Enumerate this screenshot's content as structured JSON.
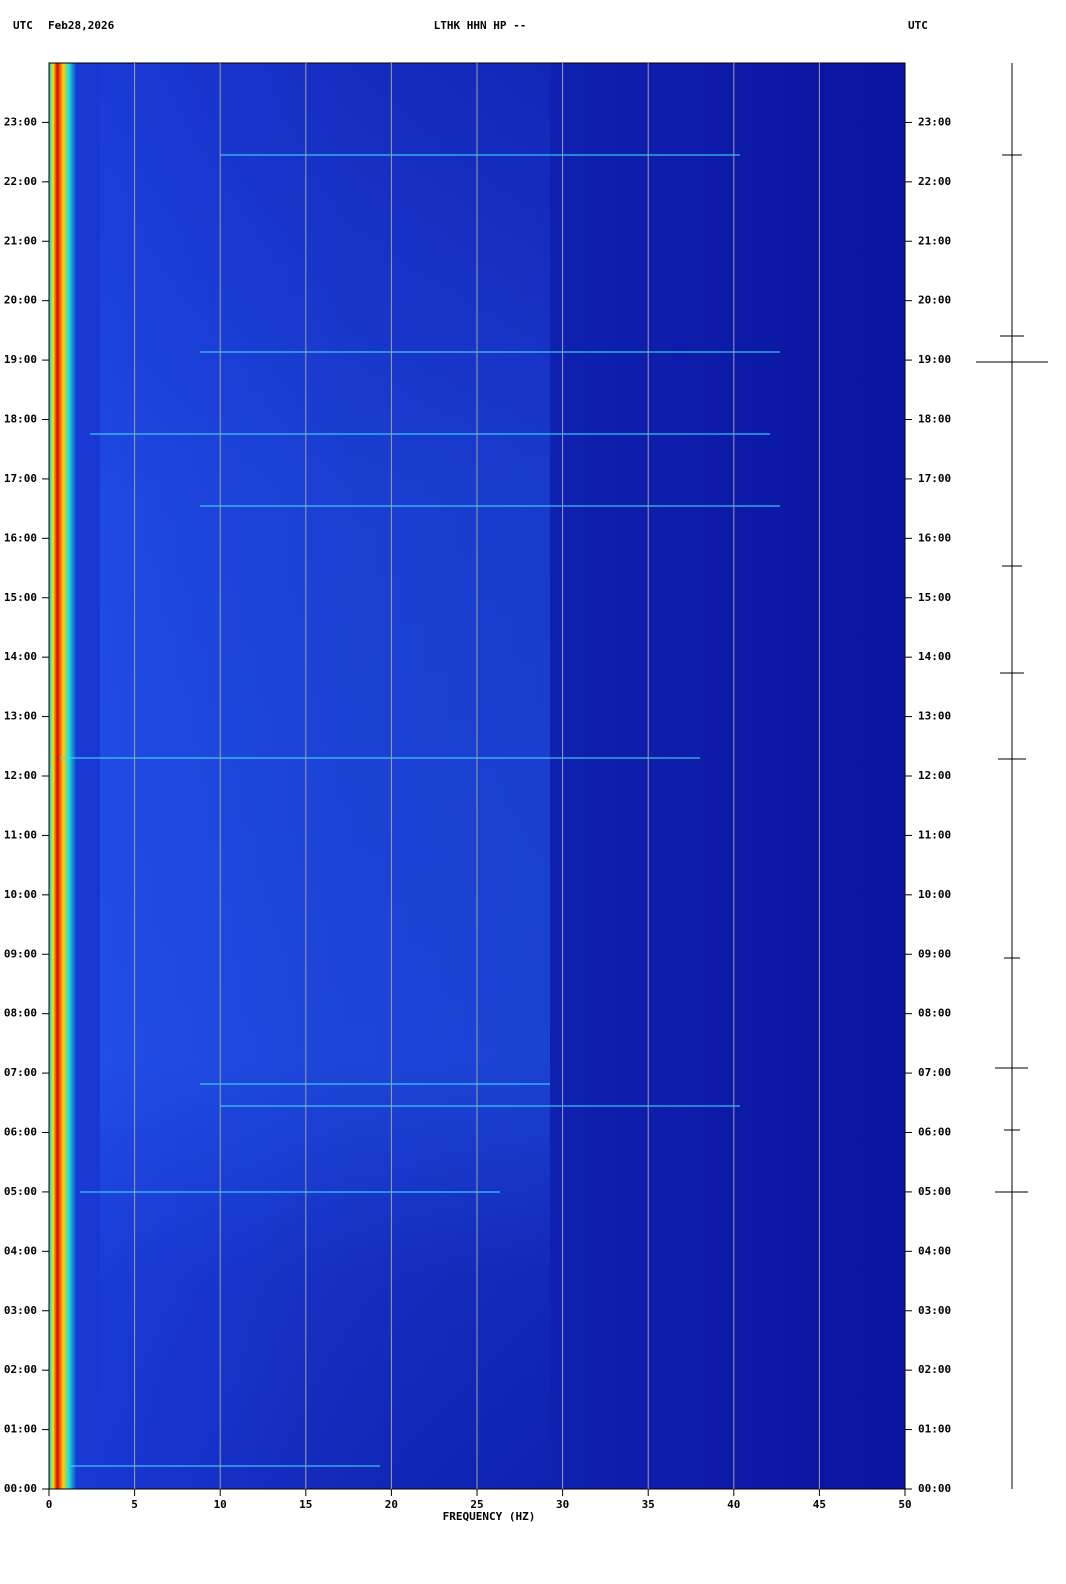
{
  "header": {
    "left_zone": "UTC",
    "date": "Feb28,2026",
    "station": "LTHK HHN HP --",
    "right_zone": "UTC"
  },
  "chart_data": {
    "type": "spectrogram",
    "x_label": "FREQUENCY (HZ)",
    "xlim": [
      0,
      50
    ],
    "xticks": [
      0,
      5,
      10,
      15,
      20,
      25,
      30,
      35,
      40,
      45,
      50
    ],
    "ylim": [
      0,
      24
    ],
    "yticks": [
      {
        "value": 0,
        "label": "00:00"
      },
      {
        "value": 1,
        "label": "01:00"
      },
      {
        "value": 2,
        "label": "02:00"
      },
      {
        "value": 3,
        "label": "03:00"
      },
      {
        "value": 4,
        "label": "04:00"
      },
      {
        "value": 5,
        "label": "05:00"
      },
      {
        "value": 6,
        "label": "06:00"
      },
      {
        "value": 7,
        "label": "07:00"
      },
      {
        "value": 8,
        "label": "08:00"
      },
      {
        "value": 9,
        "label": "09:00"
      },
      {
        "value": 10,
        "label": "10:00"
      },
      {
        "value": 11,
        "label": "11:00"
      },
      {
        "value": 12,
        "label": "12:00"
      },
      {
        "value": 13,
        "label": "13:00"
      },
      {
        "value": 14,
        "label": "14:00"
      },
      {
        "value": 15,
        "label": "15:00"
      },
      {
        "value": 16,
        "label": "16:00"
      },
      {
        "value": 17,
        "label": "17:00"
      },
      {
        "value": 18,
        "label": "18:00"
      },
      {
        "value": 19,
        "label": "19:00"
      },
      {
        "value": 20,
        "label": "20:00"
      },
      {
        "value": 21,
        "label": "21:00"
      },
      {
        "value": 22,
        "label": "22:00"
      },
      {
        "value": 23,
        "label": "23:00"
      }
    ],
    "grid": true,
    "grid_color": "#a0a0a0"
  }
}
